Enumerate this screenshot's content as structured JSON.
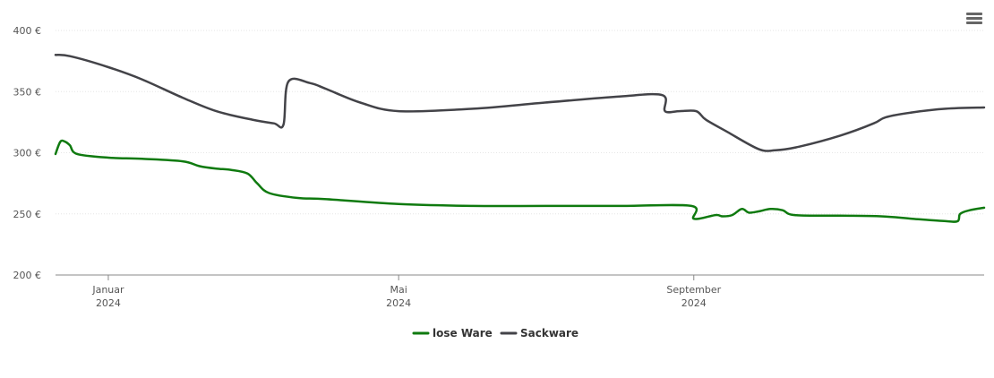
{
  "chart_data": {
    "type": "line",
    "title": "",
    "xlabel": "",
    "ylabel": "",
    "ylim": [
      200,
      400
    ],
    "xlim": [
      "2023-12-10",
      "2024-12-31"
    ],
    "y_ticks": [
      {
        "value": 200,
        "label": "200 €"
      },
      {
        "value": 250,
        "label": "250 €"
      },
      {
        "value": 300,
        "label": "300 €"
      },
      {
        "value": 350,
        "label": "350 €"
      },
      {
        "value": 400,
        "label": "400 €"
      }
    ],
    "x_ticks": [
      {
        "date": "2024-01-01",
        "month": "Januar",
        "year": "2024"
      },
      {
        "date": "2024-05-01",
        "month": "Mai",
        "year": "2024"
      },
      {
        "date": "2024-09-01",
        "month": "September",
        "year": "2024"
      }
    ],
    "grid": "horizontal",
    "legend": "bottom-center",
    "series": [
      {
        "name": "lose Ware",
        "color": "#0f7a0f",
        "points": [
          [
            "2023-12-10",
            299
          ],
          [
            "2023-12-12",
            309
          ],
          [
            "2023-12-14",
            309
          ],
          [
            "2023-12-16",
            306
          ],
          [
            "2023-12-19",
            299
          ],
          [
            "2024-01-01",
            296
          ],
          [
            "2024-01-15",
            295
          ],
          [
            "2024-02-01",
            293
          ],
          [
            "2024-02-08",
            289
          ],
          [
            "2024-02-15",
            287
          ],
          [
            "2024-02-21",
            286
          ],
          [
            "2024-02-28",
            283
          ],
          [
            "2024-03-03",
            275
          ],
          [
            "2024-03-08",
            267
          ],
          [
            "2024-03-20",
            263
          ],
          [
            "2024-04-01",
            262
          ],
          [
            "2024-05-01",
            258
          ],
          [
            "2024-06-01",
            256.5
          ],
          [
            "2024-07-01",
            256.5
          ],
          [
            "2024-08-01",
            256.5
          ],
          [
            "2024-08-31",
            256.5
          ],
          [
            "2024-09-01",
            246
          ],
          [
            "2024-09-10",
            249
          ],
          [
            "2024-09-13",
            248
          ],
          [
            "2024-09-17",
            249
          ],
          [
            "2024-09-21",
            254
          ],
          [
            "2024-09-24",
            251
          ],
          [
            "2024-09-28",
            252
          ],
          [
            "2024-10-03",
            254
          ],
          [
            "2024-10-08",
            253
          ],
          [
            "2024-10-13",
            249
          ],
          [
            "2024-11-01",
            248.5
          ],
          [
            "2024-11-18",
            248
          ],
          [
            "2024-12-01",
            246
          ],
          [
            "2024-12-15",
            244
          ],
          [
            "2024-12-20",
            244
          ],
          [
            "2024-12-21",
            250
          ],
          [
            "2024-12-25",
            253
          ],
          [
            "2024-12-31",
            255
          ]
        ]
      },
      {
        "name": "Sackware",
        "color": "#434348",
        "points": [
          [
            "2023-12-10",
            380
          ],
          [
            "2023-12-16",
            379
          ],
          [
            "2024-01-01",
            370
          ],
          [
            "2024-01-15",
            360
          ],
          [
            "2024-02-01",
            345
          ],
          [
            "2024-02-15",
            334
          ],
          [
            "2024-03-01",
            327
          ],
          [
            "2024-03-10",
            324
          ],
          [
            "2024-03-14",
            323
          ],
          [
            "2024-03-16",
            358
          ],
          [
            "2024-03-25",
            357
          ],
          [
            "2024-04-01",
            352
          ],
          [
            "2024-04-15",
            341
          ],
          [
            "2024-05-01",
            334
          ],
          [
            "2024-06-01",
            336
          ],
          [
            "2024-07-01",
            341
          ],
          [
            "2024-08-01",
            346
          ],
          [
            "2024-08-19",
            347
          ],
          [
            "2024-08-20",
            334
          ],
          [
            "2024-08-26",
            334
          ],
          [
            "2024-09-02",
            334
          ],
          [
            "2024-09-06",
            327
          ],
          [
            "2024-09-15",
            317
          ],
          [
            "2024-09-28",
            303
          ],
          [
            "2024-10-05",
            302
          ],
          [
            "2024-10-15",
            305
          ],
          [
            "2024-11-01",
            314
          ],
          [
            "2024-11-15",
            324
          ],
          [
            "2024-11-20",
            329
          ],
          [
            "2024-12-01",
            333
          ],
          [
            "2024-12-15",
            336
          ],
          [
            "2024-12-31",
            337
          ]
        ]
      }
    ]
  }
}
